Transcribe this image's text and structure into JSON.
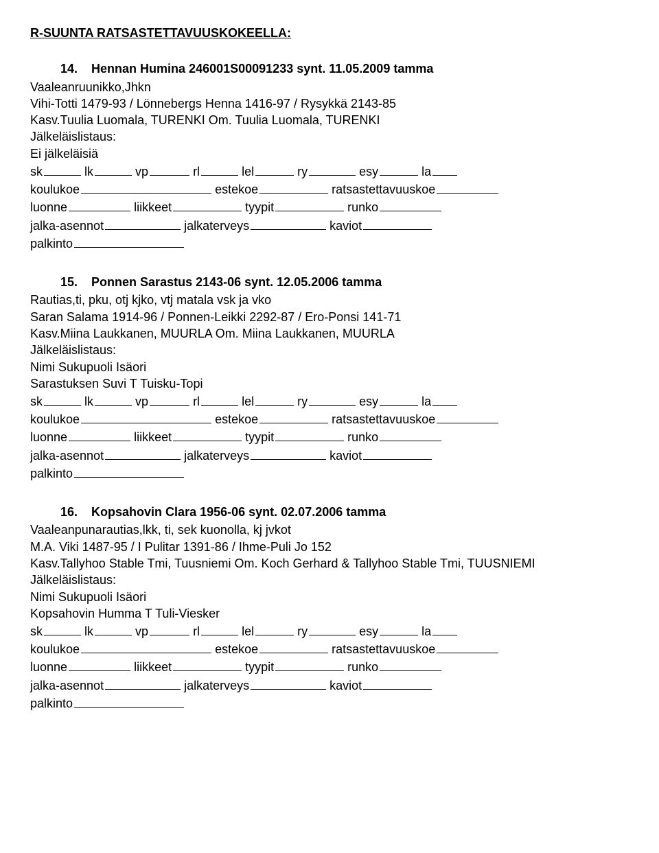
{
  "sectionTitle": "R-SUUNTA RATSASTETTAVUUSKOKEELLA:",
  "formLabels": {
    "sk": "sk",
    "lk": "lk",
    "vp": "vp",
    "rl": "rl",
    "lel": "lel",
    "ry": "ry",
    "esy": "esy",
    "la": "la",
    "koulukoe": "koulukoe",
    "estekoe": "estekoe",
    "ratsastettavuuskoe": "ratsastettavuuskoe",
    "luonne": "luonne",
    "liikkeet": "liikkeet",
    "tyypit": "tyypit",
    "runko": "runko",
    "jalkaAsennot": "jalka-asennot",
    "jalkaterveys": "jalkaterveys",
    "kaviot": "kaviot",
    "palkinto": "palkinto"
  },
  "jalkLabel": "Jälkeläislistaus:",
  "noOffspring": "Ei jälkeläisiä",
  "offspringHeader": "Nimi Sukupuoli Isäori",
  "entries": [
    {
      "num": "14.",
      "name": "Hennan Humina 246001S00091233 synt. 11.05.2009 tamma",
      "desc": "Vaaleanruunikko,Jhkn",
      "pedigree": "Vihi-Totti 1479-93 / Lönnebergs Henna 1416-97 / Rysykkä 2143-85",
      "kasv": "Kasv.Tuulia Luomala, TURENKI Om. Tuulia Luomala, TURENKI",
      "offspringMode": "none",
      "offspring": []
    },
    {
      "num": "15.",
      "name": "Ponnen Sarastus 2143-06 synt. 12.05.2006 tamma",
      "desc": "Rautias,ti, pku, otj kjko, vtj matala vsk ja vko",
      "pedigree": "Saran Salama 1914-96 / Ponnen-Leikki 2292-87 / Ero-Ponsi 141-71",
      "kasv": "Kasv.Miina Laukkanen, MUURLA Om. Miina Laukkanen, MUURLA",
      "offspringMode": "list",
      "offspring": [
        "Sarastuksen Suvi T Tuisku-Topi"
      ]
    },
    {
      "num": "16.",
      "name": "Kopsahovin Clara 1956-06 synt. 02.07.2006 tamma",
      "desc": "Vaaleanpunarautias,lkk, ti, sek kuonolla, kj jvkot",
      "pedigree": "M.A. Viki 1487-95 / I Pulitar 1391-86 / Ihme-Puli Jo 152",
      "kasv": "Kasv.Tallyhoo Stable Tmi, Tuusniemi Om. Koch Gerhard & Tallyhoo Stable Tmi, TUUSNIEMI",
      "offspringMode": "list",
      "offspring": [
        "Kopsahovin Humma T Tuli-Viesker"
      ]
    }
  ],
  "blanks": {
    "row1": {
      "sk": 54,
      "lk": 54,
      "vp": 58,
      "rl": 54,
      "lel": 56,
      "ry": 68,
      "esy": 56,
      "la": 36
    },
    "row2": {
      "koulukoe": 190,
      "estekoe": 100,
      "ratsastettavuuskoe": 90
    },
    "row3": {
      "luonne": 90,
      "liikkeet": 100,
      "tyypit": 100,
      "runko": 90
    },
    "row4": {
      "jalkaAsennot": 110,
      "jalkaterveys": 110,
      "kaviot": 100
    },
    "row5": {
      "palkinto": 160
    }
  }
}
